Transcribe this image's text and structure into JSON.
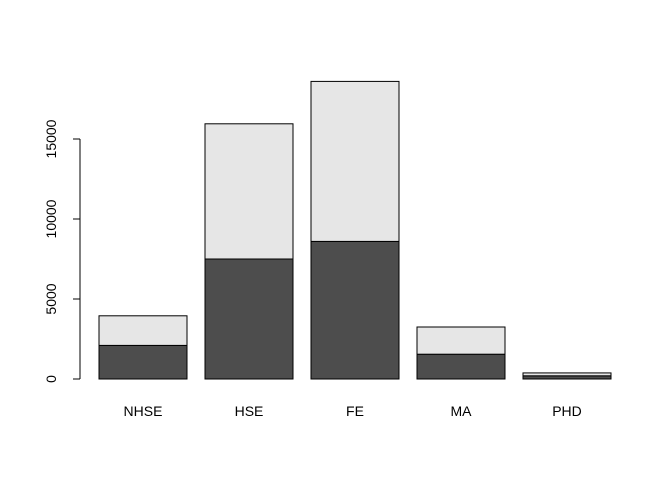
{
  "chart_data": {
    "type": "bar",
    "stacked": true,
    "categories": [
      "NHSE",
      "HSE",
      "FE",
      "MA",
      "PHD"
    ],
    "series": [
      {
        "values": [
          2100,
          7500,
          8600,
          1550,
          200
        ]
      },
      {
        "values": [
          1850,
          8450,
          10000,
          1700,
          180
        ]
      }
    ],
    "colors": [
      "#4d4d4d",
      "#e6e6e6"
    ],
    "ylim": [
      0,
      18500
    ],
    "yticks": [
      0,
      5000,
      10000,
      15000
    ],
    "ytick_labels": [
      "0",
      "5000",
      "10000",
      "15000"
    ],
    "title": "",
    "xlabel": "",
    "ylabel": "",
    "grid": false,
    "legend": false
  }
}
